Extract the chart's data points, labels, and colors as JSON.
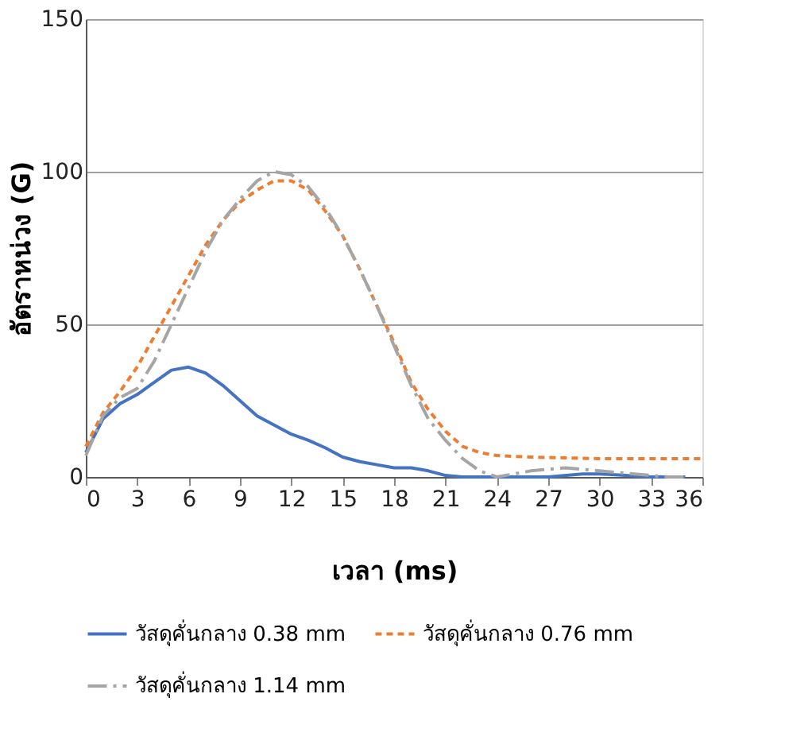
{
  "chart_data": {
    "type": "line",
    "xlabel": "เวลา (ms)",
    "ylabel": "อัตราหน่วง (G)",
    "xlim": [
      0,
      36
    ],
    "xticks": [
      0,
      3,
      6,
      9,
      12,
      15,
      18,
      21,
      24,
      27,
      30,
      33,
      36
    ],
    "ylim": [
      0,
      150
    ],
    "yticks": [
      0,
      50,
      100,
      150
    ],
    "grid": "y",
    "legend": "bottom",
    "marker": "none",
    "series": [
      {
        "name": "วัสดุคั่นกลาง 0.38 mm",
        "color": "#4472c4",
        "line_style": "solid",
        "x": [
          0,
          1,
          2,
          3,
          4,
          5,
          6,
          7,
          8,
          9,
          10,
          11,
          12,
          13,
          14,
          15,
          16,
          17,
          18,
          19,
          20,
          21,
          22,
          24,
          27,
          29,
          30,
          33,
          35
        ],
        "values": [
          8,
          19,
          24,
          27,
          31,
          35,
          36,
          34,
          30,
          25,
          20,
          17,
          14,
          12,
          9.5,
          6.5,
          5,
          4,
          3,
          3,
          2,
          0.5,
          0,
          0,
          0,
          1,
          1,
          0,
          0
        ]
      },
      {
        "name": "วัสดุคั่นกลาง 0.76  mm",
        "color": "#ed7d31",
        "line_style": "dotted",
        "x": [
          0,
          1,
          2,
          3,
          4,
          5,
          6,
          7,
          8,
          9,
          10,
          11,
          12,
          13,
          14,
          15,
          16,
          17,
          18,
          19,
          20,
          21,
          22,
          23,
          24,
          26,
          30,
          36
        ],
        "values": [
          10,
          21,
          28,
          36,
          46,
          56,
          66,
          76,
          84,
          90,
          94,
          97,
          97,
          94,
          87,
          79,
          68,
          56,
          44,
          31,
          22,
          15,
          10,
          8,
          7,
          6.5,
          6,
          6
        ]
      },
      {
        "name": "วัสดุคั่นกลาง 1.14  mm",
        "color": "#a5a5a5",
        "line_style": "dashed",
        "x": [
          0,
          1,
          2,
          3,
          4,
          5,
          6,
          7,
          8,
          9,
          10,
          11,
          12,
          13,
          14,
          15,
          16,
          17,
          18,
          19,
          20,
          21,
          22,
          23,
          24,
          25,
          26,
          28,
          30,
          32,
          34,
          35
        ],
        "values": [
          7,
          20,
          26,
          29,
          38,
          50,
          62,
          74,
          84,
          91,
          97,
          100,
          99,
          95,
          88,
          79,
          68,
          56,
          43,
          30,
          19,
          12,
          6,
          2,
          0,
          1,
          2,
          3,
          2,
          1,
          0,
          0
        ]
      }
    ]
  }
}
